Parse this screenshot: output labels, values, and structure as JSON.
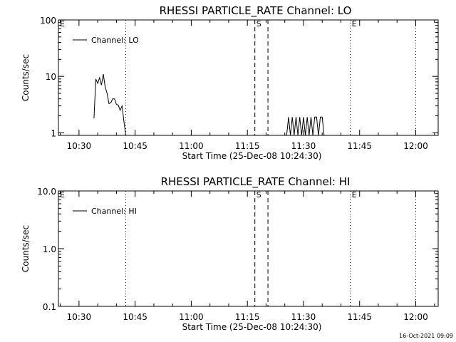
{
  "chart_data": [
    {
      "type": "line",
      "title": "RHESSI PARTICLE_RATE Channel: LO",
      "xlabel": "Start Time (25-Dec-08 10:24:30)",
      "ylabel": "Counts/sec",
      "yscale": "log",
      "xlim": [
        "10:24:30",
        "12:06:00"
      ],
      "ylim": [
        0.9,
        100
      ],
      "xtick_labels": [
        "10:30",
        "10:45",
        "11:00",
        "11:15",
        "11:30",
        "11:45",
        "12:00"
      ],
      "ytick_labels": [
        "1",
        "10",
        "100"
      ],
      "legend": {
        "entries": [
          "Channel: LO"
        ],
        "position": "top-left"
      },
      "markers": [
        {
          "label": "E",
          "time": "10:24:30",
          "style": "dotted"
        },
        {
          "label": "",
          "time": "10:42:30",
          "style": "dotted"
        },
        {
          "label": "S",
          "time": "11:17:00",
          "style": "dashed"
        },
        {
          "label": "",
          "time": "11:20:30",
          "style": "dashed"
        },
        {
          "label": "E",
          "time": "11:42:30",
          "style": "dotted"
        },
        {
          "label": "",
          "time": "12:00:00",
          "style": "dotted"
        }
      ],
      "series": [
        {
          "name": "Channel: LO",
          "x": [
            "10:34:00",
            "10:34:30",
            "10:35:00",
            "10:35:30",
            "10:36:00",
            "10:36:30",
            "10:37:00",
            "10:37:30",
            "10:38:00",
            "10:38:30",
            "10:39:00",
            "10:39:30",
            "10:40:00",
            "10:40:30",
            "10:41:00",
            "10:41:30",
            "10:42:00",
            "10:42:30"
          ],
          "y": [
            1.8,
            9,
            7.5,
            9.5,
            7,
            11,
            6.5,
            5,
            3.3,
            3.4,
            4,
            4,
            3.2,
            3.1,
            2.5,
            3,
            1.6,
            0.9
          ]
        },
        {
          "name": "",
          "x": [
            "11:25:30",
            "11:26:00",
            "11:26:30",
            "11:27:00",
            "11:27:30",
            "11:28:00",
            "11:28:30",
            "11:29:00",
            "11:29:30",
            "11:30:00",
            "11:30:30",
            "11:31:00",
            "11:31:30",
            "11:32:00",
            "11:32:30",
            "11:33:00",
            "11:33:30",
            "11:34:00",
            "11:34:30",
            "11:35:00",
            "11:35:30"
          ],
          "y": [
            0.9,
            1.9,
            0.9,
            1.9,
            0.9,
            1.9,
            0.9,
            1.9,
            0.9,
            1.9,
            0.9,
            1.9,
            0.9,
            1.9,
            0.9,
            1.9,
            1.9,
            0.9,
            1.9,
            1.9,
            0.9
          ]
        }
      ]
    },
    {
      "type": "line",
      "title": "RHESSI PARTICLE_RATE Channel: HI",
      "xlabel": "Start Time (25-Dec-08 10:24:30)",
      "ylabel": "Counts/sec",
      "yscale": "log",
      "xlim": [
        "10:24:30",
        "12:06:00"
      ],
      "ylim": [
        0.1,
        10
      ],
      "xtick_labels": [
        "10:30",
        "10:45",
        "11:00",
        "11:15",
        "11:30",
        "11:45",
        "12:00"
      ],
      "ytick_labels": [
        "0.1",
        "1.0",
        "10.0"
      ],
      "legend": {
        "entries": [
          "Channel: HI"
        ],
        "position": "top-left"
      },
      "markers": [
        {
          "label": "E",
          "time": "10:24:30",
          "style": "dotted"
        },
        {
          "label": "",
          "time": "10:42:30",
          "style": "dotted"
        },
        {
          "label": "S",
          "time": "11:17:00",
          "style": "dashed"
        },
        {
          "label": "",
          "time": "11:20:30",
          "style": "dashed"
        },
        {
          "label": "E",
          "time": "11:42:30",
          "style": "dotted"
        },
        {
          "label": "",
          "time": "12:00:00",
          "style": "dotted"
        }
      ],
      "series": [
        {
          "name": "Channel: HI",
          "x": [],
          "y": []
        }
      ]
    }
  ],
  "footer": {
    "timestamp": "16-Oct-2021 09:09"
  }
}
